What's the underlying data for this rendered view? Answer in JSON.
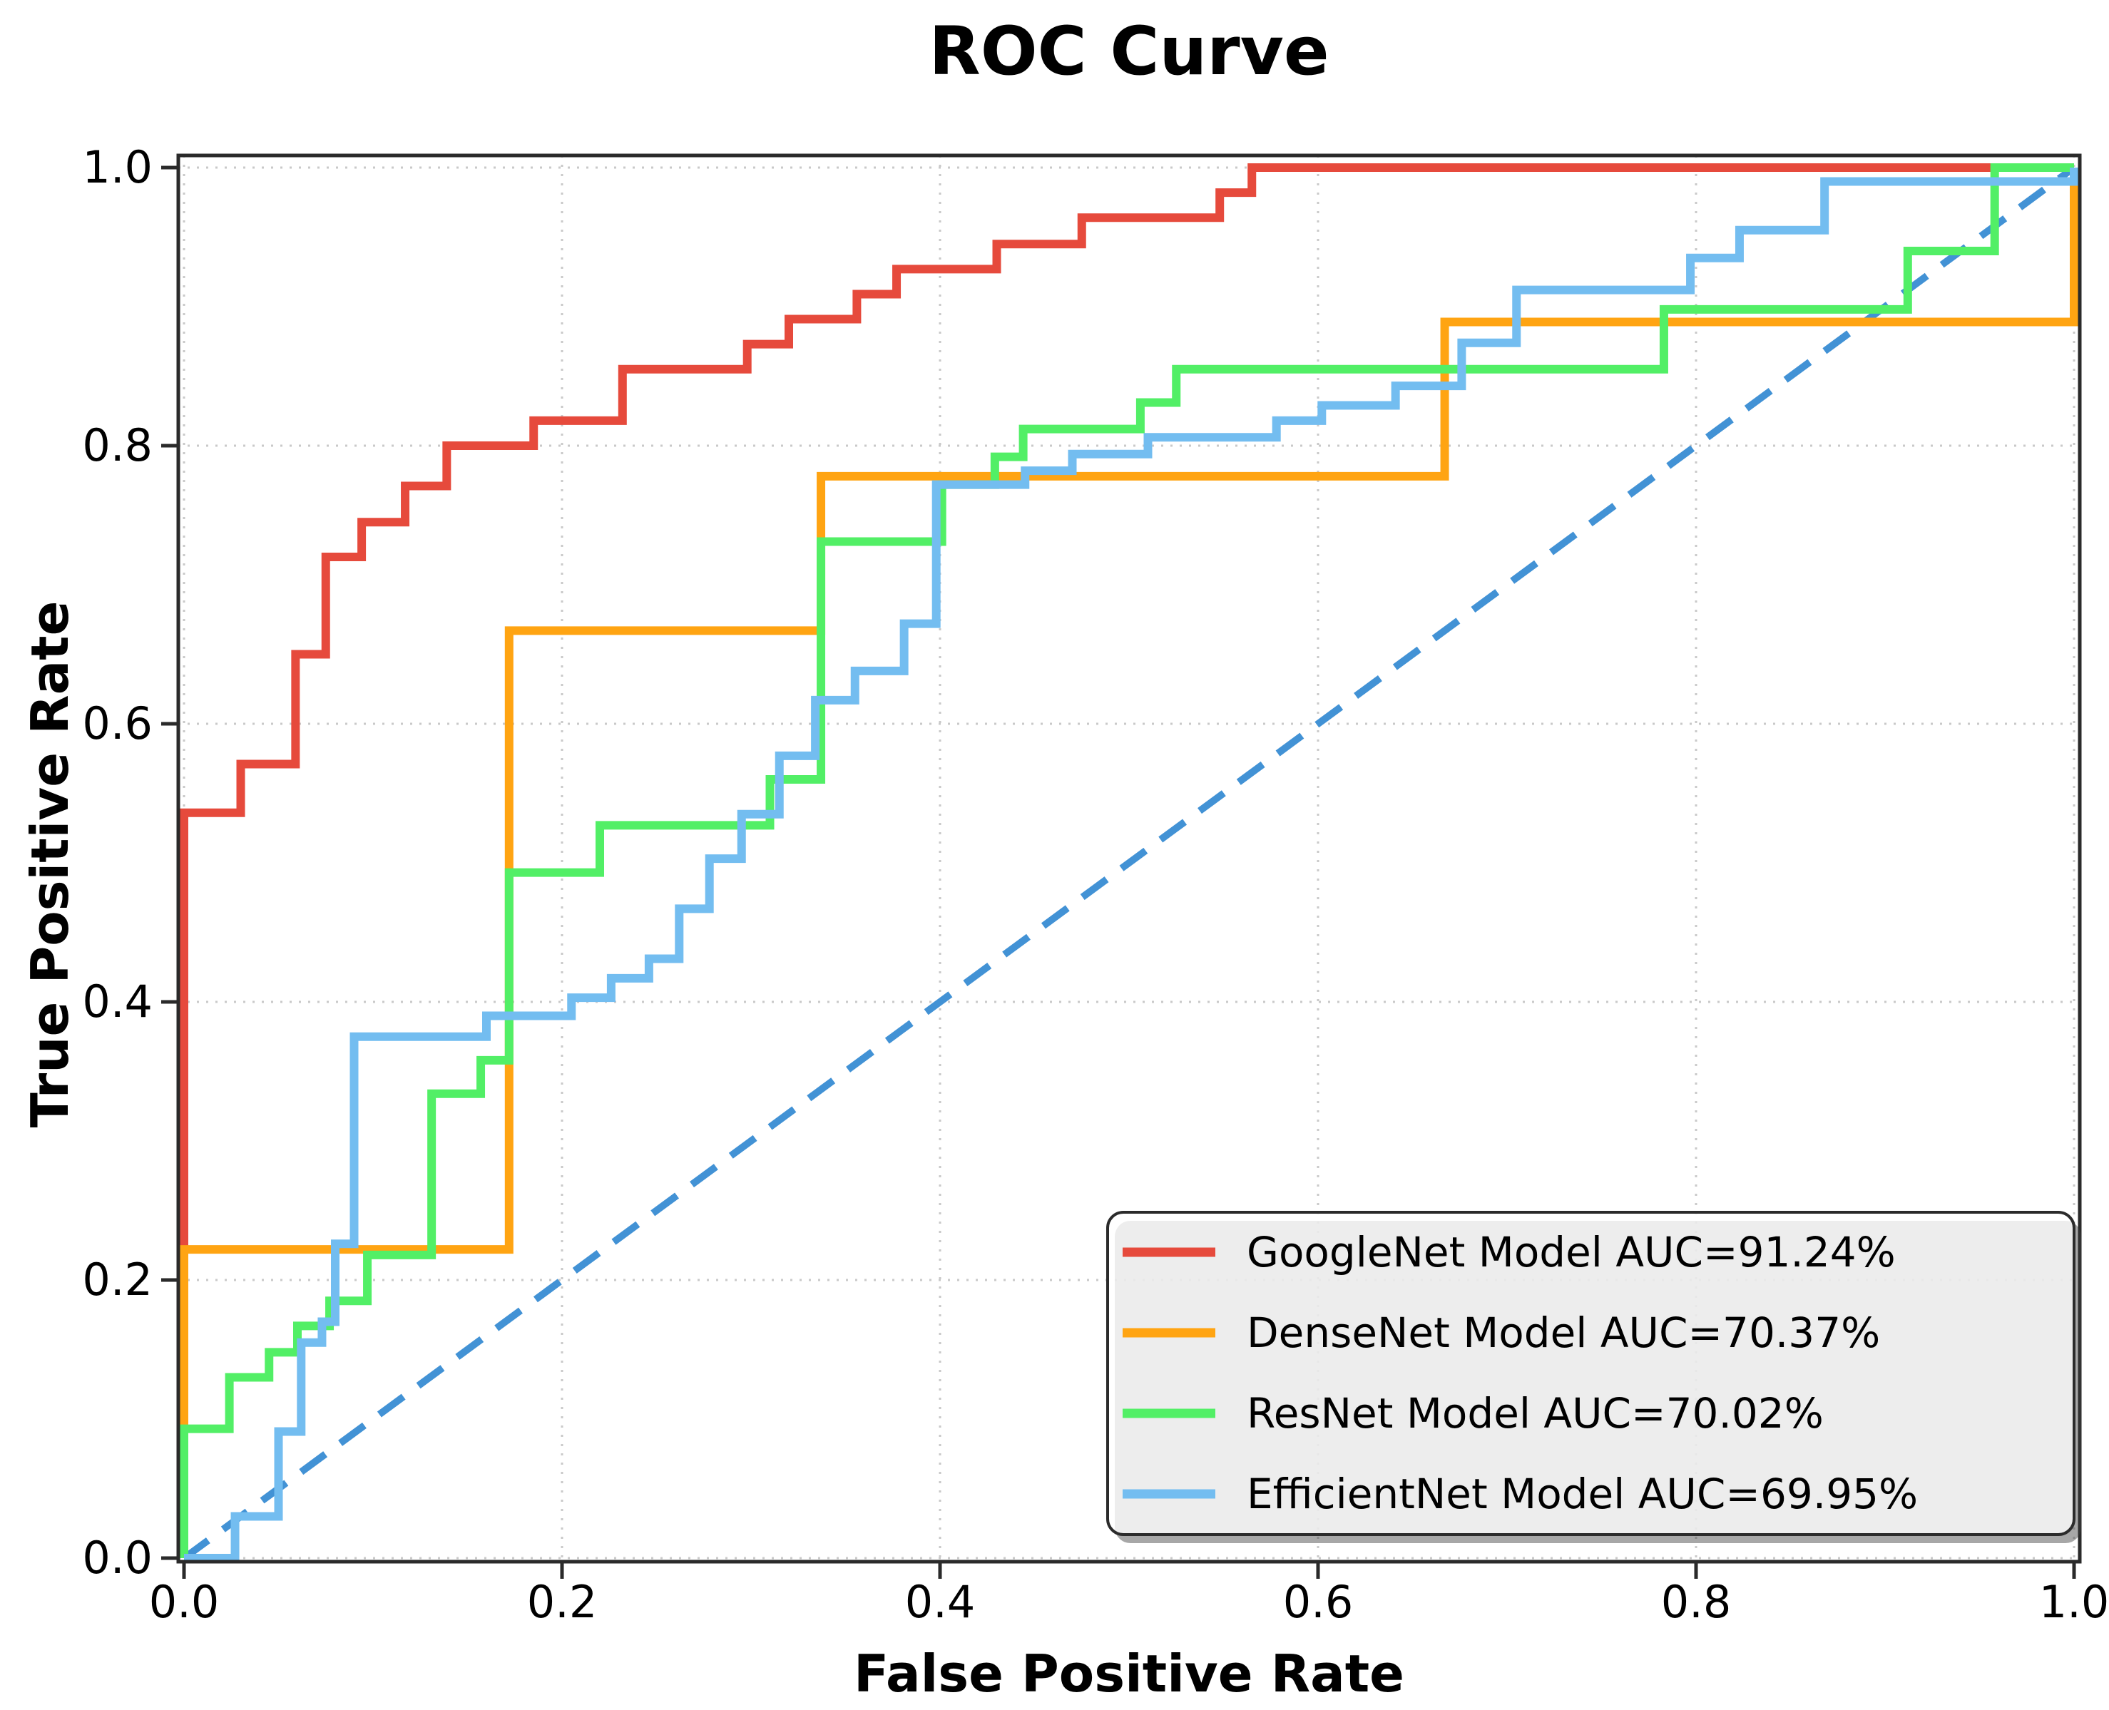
{
  "title": "ROC Curve",
  "axes": {
    "xlabel": "False Positive Rate",
    "ylabel": "True Positive Rate",
    "xticks": [
      {
        "v": 0.0,
        "label": "0.0"
      },
      {
        "v": 0.2,
        "label": "0.2"
      },
      {
        "v": 0.4,
        "label": "0.4"
      },
      {
        "v": 0.6,
        "label": "0.6"
      },
      {
        "v": 0.8,
        "label": "0.8"
      },
      {
        "v": 1.0,
        "label": "1.0"
      }
    ],
    "yticks": [
      {
        "v": 0.0,
        "label": "0.0"
      },
      {
        "v": 0.2,
        "label": "0.2"
      },
      {
        "v": 0.4,
        "label": "0.4"
      },
      {
        "v": 0.6,
        "label": "0.6"
      },
      {
        "v": 0.8,
        "label": "0.8"
      },
      {
        "v": 1.0,
        "label": "1.0"
      }
    ]
  },
  "colors": {
    "googlenet": "#e64a3c",
    "densenet": "#ffa412",
    "resnet": "#52ef66",
    "efficientnet": "#73bdf0",
    "diagonal": "#4292d5",
    "grid": "#c9c9c9",
    "spine": "#2a2a2a",
    "legend_border": "#2b2b2b"
  },
  "legend": {
    "position": "lower right",
    "items": [
      {
        "key": "googlenet",
        "label": "GoogleNet Model AUC=91.24%"
      },
      {
        "key": "densenet",
        "label": "DenseNet Model AUC=70.37%"
      },
      {
        "key": "resnet",
        "label": "ResNet Model AUC=70.02%"
      },
      {
        "key": "efficientnet",
        "label": "EfficientNet Model AUC=69.95%"
      }
    ]
  },
  "chart_data": {
    "type": "line",
    "subtype": "roc-step-curves",
    "title": "ROC Curve",
    "xlabel": "False Positive Rate",
    "ylabel": "True Positive Rate",
    "xlim": [
      0,
      1
    ],
    "ylim": [
      0,
      1
    ],
    "grid": true,
    "grid_style": "dotted",
    "legend_position": "lower right",
    "series": [
      {
        "key": "googlenet",
        "name": "GoogleNet Model AUC=91.24%",
        "auc_percent": 91.24,
        "color": "#e64a3c",
        "points": [
          [
            0,
            0
          ],
          [
            0,
            0.536
          ],
          [
            0.03,
            0.536
          ],
          [
            0.03,
            0.571
          ],
          [
            0.059,
            0.571
          ],
          [
            0.059,
            0.65
          ],
          [
            0.075,
            0.65
          ],
          [
            0.075,
            0.72
          ],
          [
            0.094,
            0.72
          ],
          [
            0.094,
            0.745
          ],
          [
            0.117,
            0.745
          ],
          [
            0.117,
            0.771
          ],
          [
            0.139,
            0.771
          ],
          [
            0.139,
            0.8
          ],
          [
            0.185,
            0.8
          ],
          [
            0.185,
            0.818
          ],
          [
            0.232,
            0.818
          ],
          [
            0.232,
            0.855
          ],
          [
            0.298,
            0.855
          ],
          [
            0.298,
            0.873
          ],
          [
            0.32,
            0.873
          ],
          [
            0.32,
            0.891
          ],
          [
            0.356,
            0.891
          ],
          [
            0.356,
            0.909
          ],
          [
            0.377,
            0.909
          ],
          [
            0.377,
            0.927
          ],
          [
            0.43,
            0.927
          ],
          [
            0.43,
            0.945
          ],
          [
            0.475,
            0.945
          ],
          [
            0.475,
            0.964
          ],
          [
            0.548,
            0.964
          ],
          [
            0.548,
            0.982
          ],
          [
            0.565,
            0.982
          ],
          [
            0.565,
            1
          ],
          [
            1,
            1
          ]
        ]
      },
      {
        "key": "densenet",
        "name": "DenseNet Model AUC=70.37%",
        "auc_percent": 70.37,
        "color": "#ffa412",
        "points": [
          [
            0,
            0
          ],
          [
            0,
            0.222
          ],
          [
            0.172,
            0.222
          ],
          [
            0.172,
            0.667
          ],
          [
            0.337,
            0.667
          ],
          [
            0.337,
            0.778
          ],
          [
            0.667,
            0.778
          ],
          [
            0.667,
            0.889
          ],
          [
            1,
            0.889
          ],
          [
            1,
            1
          ]
        ]
      },
      {
        "key": "resnet",
        "name": "ResNet Model AUC=70.02%",
        "auc_percent": 70.02,
        "color": "#52ef66",
        "points": [
          [
            0,
            0
          ],
          [
            0,
            0.093
          ],
          [
            0.024,
            0.093
          ],
          [
            0.024,
            0.13
          ],
          [
            0.045,
            0.13
          ],
          [
            0.045,
            0.148
          ],
          [
            0.06,
            0.148
          ],
          [
            0.06,
            0.167
          ],
          [
            0.077,
            0.167
          ],
          [
            0.077,
            0.185
          ],
          [
            0.097,
            0.185
          ],
          [
            0.097,
            0.218
          ],
          [
            0.131,
            0.218
          ],
          [
            0.131,
            0.334
          ],
          [
            0.157,
            0.334
          ],
          [
            0.157,
            0.358
          ],
          [
            0.172,
            0.358
          ],
          [
            0.172,
            0.493
          ],
          [
            0.22,
            0.493
          ],
          [
            0.22,
            0.527
          ],
          [
            0.31,
            0.527
          ],
          [
            0.31,
            0.56
          ],
          [
            0.337,
            0.56
          ],
          [
            0.337,
            0.731
          ],
          [
            0.401,
            0.731
          ],
          [
            0.401,
            0.772
          ],
          [
            0.429,
            0.772
          ],
          [
            0.429,
            0.792
          ],
          [
            0.444,
            0.792
          ],
          [
            0.444,
            0.812
          ],
          [
            0.506,
            0.812
          ],
          [
            0.506,
            0.831
          ],
          [
            0.525,
            0.831
          ],
          [
            0.525,
            0.855
          ],
          [
            0.783,
            0.855
          ],
          [
            0.783,
            0.898
          ],
          [
            0.912,
            0.898
          ],
          [
            0.912,
            0.94
          ],
          [
            0.958,
            0.94
          ],
          [
            0.958,
            1
          ],
          [
            1,
            1
          ]
        ]
      },
      {
        "key": "efficientnet",
        "name": "EfficientNet Model AUC=69.95%",
        "auc_percent": 69.95,
        "color": "#73bdf0",
        "points": [
          [
            0,
            0
          ],
          [
            0.027,
            0
          ],
          [
            0.027,
            0.03
          ],
          [
            0.05,
            0.03
          ],
          [
            0.05,
            0.091
          ],
          [
            0.062,
            0.091
          ],
          [
            0.062,
            0.155
          ],
          [
            0.073,
            0.155
          ],
          [
            0.073,
            0.17
          ],
          [
            0.08,
            0.17
          ],
          [
            0.08,
            0.226
          ],
          [
            0.09,
            0.226
          ],
          [
            0.09,
            0.375
          ],
          [
            0.16,
            0.375
          ],
          [
            0.16,
            0.39
          ],
          [
            0.205,
            0.39
          ],
          [
            0.205,
            0.403
          ],
          [
            0.226,
            0.403
          ],
          [
            0.226,
            0.417
          ],
          [
            0.246,
            0.417
          ],
          [
            0.246,
            0.431
          ],
          [
            0.262,
            0.431
          ],
          [
            0.262,
            0.467
          ],
          [
            0.278,
            0.467
          ],
          [
            0.278,
            0.503
          ],
          [
            0.295,
            0.503
          ],
          [
            0.295,
            0.535
          ],
          [
            0.315,
            0.535
          ],
          [
            0.315,
            0.577
          ],
          [
            0.334,
            0.577
          ],
          [
            0.334,
            0.617
          ],
          [
            0.355,
            0.617
          ],
          [
            0.355,
            0.638
          ],
          [
            0.381,
            0.638
          ],
          [
            0.381,
            0.672
          ],
          [
            0.398,
            0.672
          ],
          [
            0.398,
            0.772
          ],
          [
            0.445,
            0.772
          ],
          [
            0.445,
            0.782
          ],
          [
            0.47,
            0.782
          ],
          [
            0.47,
            0.794
          ],
          [
            0.51,
            0.794
          ],
          [
            0.51,
            0.806
          ],
          [
            0.578,
            0.806
          ],
          [
            0.578,
            0.818
          ],
          [
            0.602,
            0.818
          ],
          [
            0.602,
            0.829
          ],
          [
            0.641,
            0.829
          ],
          [
            0.641,
            0.843
          ],
          [
            0.676,
            0.843
          ],
          [
            0.676,
            0.874
          ],
          [
            0.705,
            0.874
          ],
          [
            0.705,
            0.912
          ],
          [
            0.797,
            0.912
          ],
          [
            0.797,
            0.935
          ],
          [
            0.823,
            0.935
          ],
          [
            0.823,
            0.955
          ],
          [
            0.868,
            0.955
          ],
          [
            0.868,
            0.99
          ],
          [
            1,
            0.99
          ],
          [
            1,
            1
          ]
        ]
      }
    ],
    "reference_diagonal": {
      "name": "chance line",
      "style": "dashed",
      "color": "#4292d5",
      "points": [
        [
          0,
          0
        ],
        [
          1,
          1
        ]
      ]
    }
  }
}
